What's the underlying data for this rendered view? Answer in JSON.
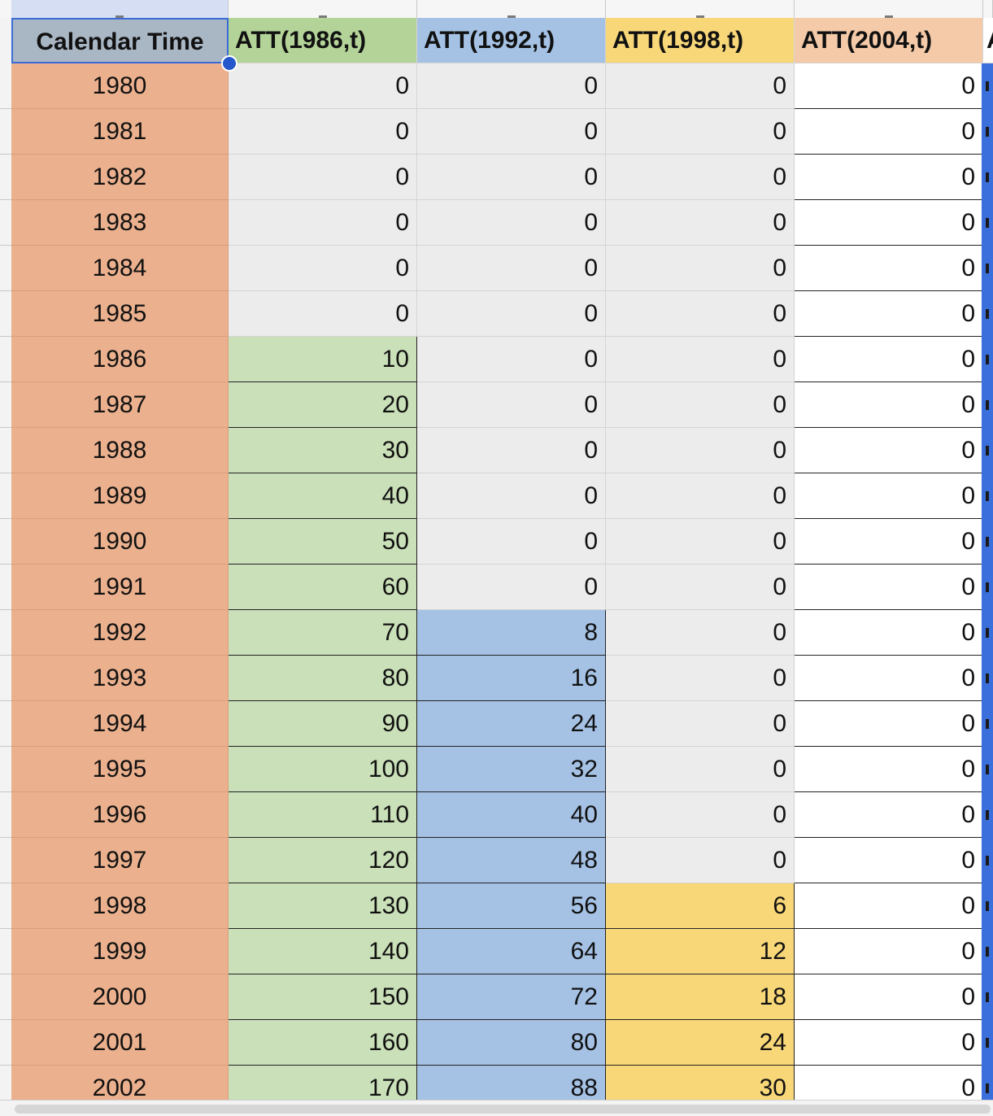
{
  "headers": {
    "col_a": "Calendar Time",
    "col_b": "ATT(1986,t)",
    "col_c": "ATT(1992,t)",
    "col_d": "ATT(1998,t)",
    "col_e": "ATT(2004,t)",
    "col_f": "A"
  },
  "rows": [
    {
      "year": "1980",
      "b": "0",
      "c": "0",
      "d": "0",
      "e": "0"
    },
    {
      "year": "1981",
      "b": "0",
      "c": "0",
      "d": "0",
      "e": "0"
    },
    {
      "year": "1982",
      "b": "0",
      "c": "0",
      "d": "0",
      "e": "0"
    },
    {
      "year": "1983",
      "b": "0",
      "c": "0",
      "d": "0",
      "e": "0"
    },
    {
      "year": "1984",
      "b": "0",
      "c": "0",
      "d": "0",
      "e": "0"
    },
    {
      "year": "1985",
      "b": "0",
      "c": "0",
      "d": "0",
      "e": "0"
    },
    {
      "year": "1986",
      "b": "10",
      "c": "0",
      "d": "0",
      "e": "0"
    },
    {
      "year": "1987",
      "b": "20",
      "c": "0",
      "d": "0",
      "e": "0"
    },
    {
      "year": "1988",
      "b": "30",
      "c": "0",
      "d": "0",
      "e": "0"
    },
    {
      "year": "1989",
      "b": "40",
      "c": "0",
      "d": "0",
      "e": "0"
    },
    {
      "year": "1990",
      "b": "50",
      "c": "0",
      "d": "0",
      "e": "0"
    },
    {
      "year": "1991",
      "b": "60",
      "c": "0",
      "d": "0",
      "e": "0"
    },
    {
      "year": "1992",
      "b": "70",
      "c": "8",
      "d": "0",
      "e": "0"
    },
    {
      "year": "1993",
      "b": "80",
      "c": "16",
      "d": "0",
      "e": "0"
    },
    {
      "year": "1994",
      "b": "90",
      "c": "24",
      "d": "0",
      "e": "0"
    },
    {
      "year": "1995",
      "b": "100",
      "c": "32",
      "d": "0",
      "e": "0"
    },
    {
      "year": "1996",
      "b": "110",
      "c": "40",
      "d": "0",
      "e": "0"
    },
    {
      "year": "1997",
      "b": "120",
      "c": "48",
      "d": "0",
      "e": "0"
    },
    {
      "year": "1998",
      "b": "130",
      "c": "56",
      "d": "6",
      "e": "0"
    },
    {
      "year": "1999",
      "b": "140",
      "c": "64",
      "d": "12",
      "e": "0"
    },
    {
      "year": "2000",
      "b": "150",
      "c": "72",
      "d": "18",
      "e": "0"
    },
    {
      "year": "2001",
      "b": "160",
      "c": "80",
      "d": "24",
      "e": "0"
    },
    {
      "year": "2002",
      "b": "170",
      "c": "88",
      "d": "30",
      "e": "0"
    }
  ],
  "colors": {
    "year_fill": "#ebb08d",
    "att1986_fill": "#cae0b9",
    "att1992_fill": "#a5c2e5",
    "att1998_fill": "#f8d779",
    "att2004_header_fill": "#f4caa8",
    "selection_blue": "#3a6fdc"
  }
}
